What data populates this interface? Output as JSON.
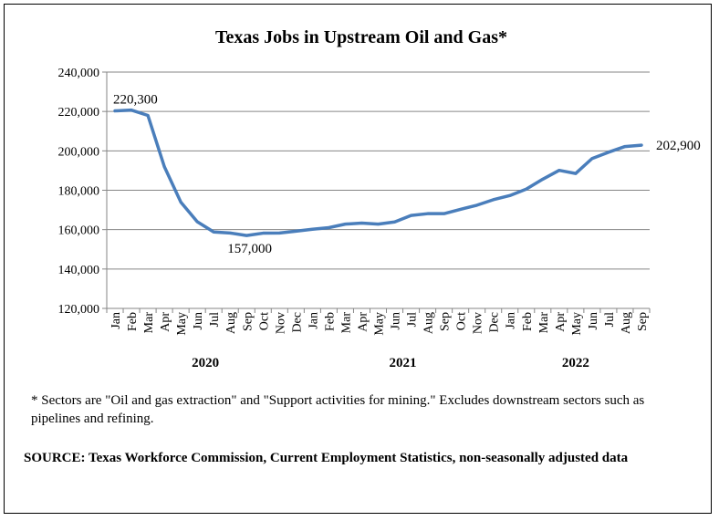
{
  "chart_data": {
    "type": "line",
    "title": "Texas Jobs in Upstream Oil and Gas*",
    "categories": [
      "Jan",
      "Feb",
      "Mar",
      "Apr",
      "May",
      "Jun",
      "Jul",
      "Aug",
      "Sep",
      "Oct",
      "Nov",
      "Dec",
      "Jan",
      "Feb",
      "Mar",
      "Apr",
      "May",
      "Jun",
      "Jul",
      "Aug",
      "Sep",
      "Oct",
      "Nov",
      "Dec",
      "Jan",
      "Feb",
      "Mar",
      "Apr",
      "May",
      "Jun",
      "Jul",
      "Aug",
      "Sep"
    ],
    "years": [
      {
        "label": "2020",
        "first_index": 0,
        "last_index": 11
      },
      {
        "label": "2021",
        "first_index": 12,
        "last_index": 23
      },
      {
        "label": "2022",
        "first_index": 24,
        "last_index": 32
      }
    ],
    "series": [
      {
        "color": "#4a7ebb",
        "values": [
          220300,
          220700,
          218000,
          192000,
          174000,
          164000,
          158800,
          158300,
          157000,
          158200,
          158300,
          159200,
          160200,
          161000,
          162800,
          163300,
          162800,
          163900,
          167200,
          168100,
          168100,
          170300,
          172400,
          175200,
          177300,
          180600,
          185600,
          190100,
          188500,
          196100,
          199300,
          202200,
          202900
        ]
      }
    ],
    "data_labels": [
      {
        "index": 0,
        "text": "220,300",
        "position": "above"
      },
      {
        "index": 8,
        "text": "157,000",
        "position": "below"
      },
      {
        "index": 32,
        "text": "202,900",
        "position": "right"
      }
    ],
    "yticks": [
      "120,000",
      "140,000",
      "160,000",
      "180,000",
      "200,000",
      "220,000",
      "240,000"
    ],
    "ylim": [
      120000,
      240000
    ],
    "grid": true,
    "legend": "none"
  },
  "footnote": "* Sectors are \"Oil and gas extraction\" and \"Support activities for mining.\"  Excludes downstream sectors such as pipelines and refining.",
  "source": "SOURCE: Texas Workforce Commission, Current Employment Statistics, non-seasonally adjusted data"
}
